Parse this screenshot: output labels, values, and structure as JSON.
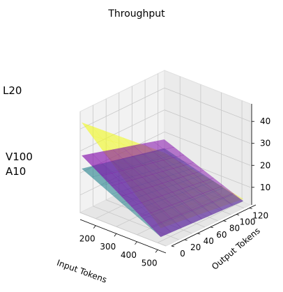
{
  "chart_data": {
    "type": "surface3d",
    "title": "Throughput",
    "xlabel": "Input Tokens",
    "ylabel": "Output Tokens",
    "zlabel": "",
    "x_ticks": [
      200,
      300,
      400,
      500
    ],
    "y_ticks": [
      0,
      20,
      40,
      60,
      80,
      100,
      120
    ],
    "z_ticks": [
      10,
      20,
      30,
      40
    ],
    "xlim": [
      125,
      540
    ],
    "ylim": [
      0,
      130
    ],
    "zlim": [
      2,
      48
    ],
    "grid": true,
    "x": [
      130,
      512
    ],
    "y": [
      1,
      128
    ],
    "series": [
      {
        "name": "L20",
        "color": "#f0f921",
        "z": [
          [
            43,
            11
          ],
          [
            9,
            4
          ]
        ]
      },
      {
        "name": "V100",
        "color": "#7e03a8",
        "z": [
          [
            28,
            17
          ],
          [
            5,
            3
          ]
        ]
      },
      {
        "name": "A10",
        "color": "#26828e",
        "z": [
          [
            22,
            13
          ],
          [
            5,
            3
          ]
        ]
      }
    ]
  }
}
